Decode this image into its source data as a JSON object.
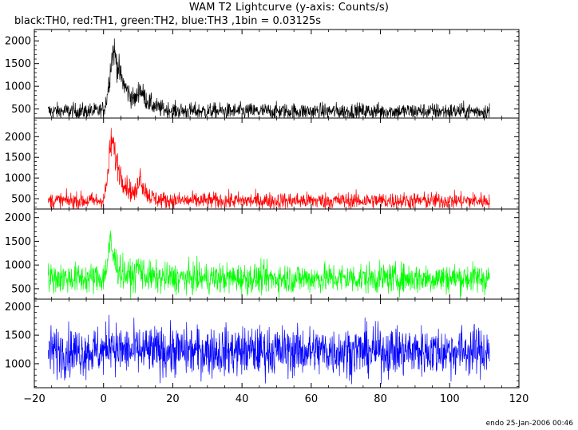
{
  "title": "WAM T2 Lightcurve (y-axis: Counts/s)",
  "subtitle": "black:TH0, red:TH1, green:TH2, blue:TH3 ,1bin = 0.03125s",
  "credit": "endo 25-Jan-2006 00:46",
  "chart_data": {
    "type": "line",
    "xlim": [
      -20,
      120
    ],
    "x_ticks": [
      -20,
      0,
      20,
      40,
      60,
      80,
      100,
      120
    ],
    "x_tick_labels": [
      "−20",
      "0",
      "20",
      "40",
      "60",
      "80",
      "100",
      "120"
    ],
    "xlabel": "",
    "ylabel": "Counts/s",
    "bin_seconds": 0.03125,
    "data_x_range": [
      -16,
      111.5
    ],
    "panels": [
      {
        "name": "TH0",
        "color": "#000000",
        "ylim": [
          300,
          2250
        ],
        "y_ticks": [
          500,
          1000,
          1500,
          2000,
          2500
        ],
        "y_tick_labels": [
          "500",
          "1000",
          "1500",
          "2000",
          "2500"
        ],
        "baseline": 450,
        "noise": 80,
        "peaks": [
          {
            "t": 3,
            "amp": 1350,
            "rise": 1.2,
            "decay": 3.5
          },
          {
            "t": 10.5,
            "amp": 350,
            "rise": 0.6,
            "decay": 2.5
          }
        ]
      },
      {
        "name": "TH1",
        "color": "#ff0000",
        "ylim": [
          250,
          2450
        ],
        "y_ticks": [
          500,
          1000,
          1500,
          2000
        ],
        "y_tick_labels": [
          "500",
          "1000",
          "1500",
          "2000"
        ],
        "baseline": 450,
        "noise": 90,
        "peaks": [
          {
            "t": 2.5,
            "amp": 1450,
            "rise": 1.0,
            "decay": 3.0
          },
          {
            "t": 10.5,
            "amp": 550,
            "rise": 0.5,
            "decay": 1.5
          }
        ]
      },
      {
        "name": "TH2",
        "color": "#00ff00",
        "ylim": [
          280,
          2180
        ],
        "y_ticks": [
          500,
          1000,
          1500,
          2000
        ],
        "y_tick_labels": [
          "500",
          "1000",
          "1500",
          "2000"
        ],
        "baseline": 720,
        "noise": 140,
        "peaks": [
          {
            "t": 2,
            "amp": 700,
            "rise": 0.8,
            "decay": 2.0
          },
          {
            "t": 10,
            "amp": 250,
            "rise": 0.5,
            "decay": 1.5
          }
        ]
      },
      {
        "name": "TH3",
        "color": "#0000ff",
        "ylim": [
          580,
          2130
        ],
        "y_ticks": [
          1000,
          1500,
          2000
        ],
        "y_tick_labels": [
          "1000",
          "1500",
          "2000"
        ],
        "baseline": 1220,
        "noise": 190,
        "peaks": [
          {
            "t": 2,
            "amp": 250,
            "rise": 0.5,
            "decay": 1.0
          }
        ]
      }
    ]
  }
}
